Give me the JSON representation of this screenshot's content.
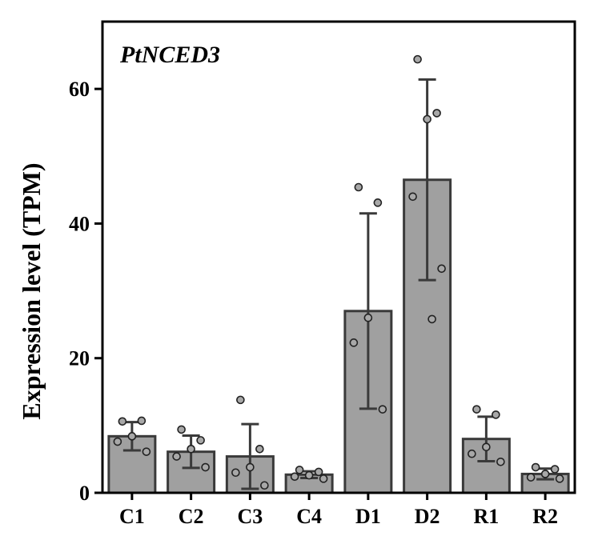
{
  "chart_data": {
    "type": "bar",
    "title": "PtNCED3",
    "xlabel": "",
    "ylabel": "Expression level (TPM)",
    "ylim": [
      0,
      70
    ],
    "yticks": [
      0,
      20,
      40,
      60
    ],
    "grid": false,
    "categories": [
      "C1",
      "C2",
      "C3",
      "C4",
      "D1",
      "D2",
      "R1",
      "R2"
    ],
    "values": [
      8.4,
      6.1,
      5.4,
      2.7,
      27.0,
      46.5,
      8.0,
      2.8
    ],
    "error_sd": [
      2.1,
      2.4,
      4.8,
      0.5,
      14.5,
      14.9,
      3.3,
      0.8
    ],
    "points": [
      [
        10.6,
        10.7,
        8.4,
        7.6,
        6.1
      ],
      [
        9.4,
        7.8,
        6.5,
        5.4,
        3.8
      ],
      [
        13.8,
        6.5,
        3.8,
        3.0,
        1.1
      ],
      [
        3.4,
        3.1,
        2.6,
        2.4,
        2.1
      ],
      [
        45.4,
        43.1,
        26.0,
        22.3,
        12.4
      ],
      [
        64.4,
        56.4,
        55.5,
        44.0,
        33.3,
        25.8
      ],
      [
        12.4,
        11.6,
        6.8,
        5.8,
        4.6
      ],
      [
        3.8,
        3.5,
        2.8,
        2.3,
        2.1
      ]
    ],
    "colors": {
      "bar_fill": "#a0a0a0",
      "bar_stroke": "#3a3a3a",
      "point_fill": "#a8a8a8",
      "axis": "#000000"
    }
  }
}
